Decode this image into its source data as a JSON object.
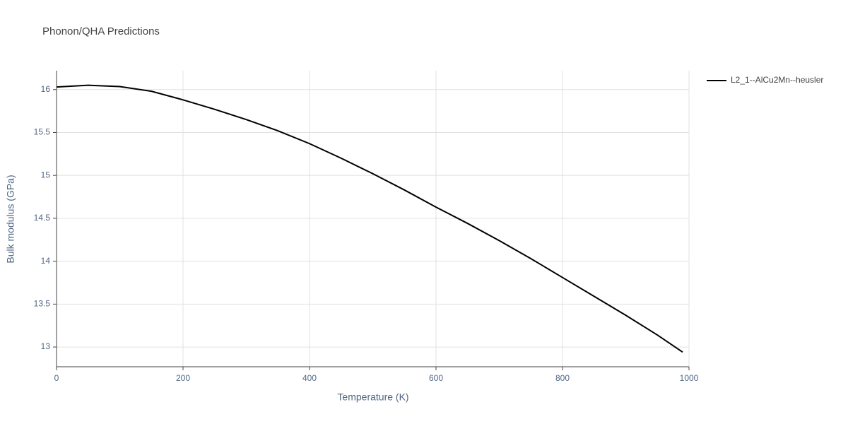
{
  "chart_data": {
    "type": "line",
    "title": "Phonon/QHA Predictions",
    "x_label": "Temperature (K)",
    "y_label": "Bulk modulus (GPa)",
    "series": [
      {
        "name": "L2_1--AlCu2Mn--heusler",
        "color": "#000000",
        "x": [
          0,
          50,
          100,
          150,
          200,
          250,
          300,
          350,
          400,
          450,
          500,
          550,
          600,
          650,
          700,
          750,
          800,
          850,
          900,
          950,
          990
        ],
        "values": [
          16.03,
          16.05,
          16.035,
          15.98,
          15.88,
          15.77,
          15.65,
          15.52,
          15.37,
          15.2,
          15.02,
          14.83,
          14.63,
          14.44,
          14.24,
          14.03,
          13.81,
          13.59,
          13.37,
          13.14,
          12.94
        ]
      }
    ],
    "xlim": [
      0,
      1000
    ],
    "xticks": [
      0,
      200,
      400,
      600,
      800,
      1000
    ],
    "ylim": [
      12.77,
      16.22
    ],
    "yticks": [
      13,
      13.5,
      14,
      14.5,
      15,
      15.5,
      16
    ],
    "grid": true,
    "legend": "right"
  }
}
